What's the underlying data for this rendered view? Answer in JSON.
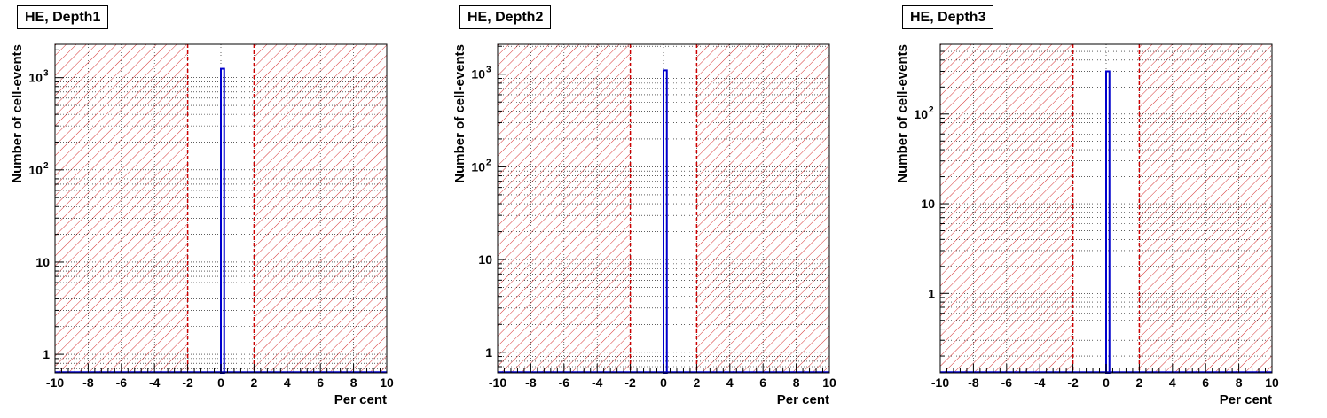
{
  "chart_data": [
    {
      "type": "histogram",
      "title": "HE, Depth1",
      "xlabel": "Per cent",
      "ylabel": "Number of cell-events",
      "xlim": [
        -10,
        10
      ],
      "ylim": [
        0.63,
        2300
      ],
      "yscale": "log",
      "x_ticks": [
        "-10",
        "-8",
        "-6",
        "-4",
        "-2",
        "0",
        "2",
        "4",
        "6",
        "8",
        "10"
      ],
      "y_ticks": [
        {
          "v": 1,
          "label": "1"
        },
        {
          "v": 10,
          "label": "10"
        },
        {
          "v": 100,
          "label": "10",
          "sup": "2"
        },
        {
          "v": 1000,
          "label": "10",
          "sup": "3"
        }
      ],
      "cut_lines": [
        -2,
        2
      ],
      "bins": [
        {
          "x0": 0,
          "x1": 0.2,
          "y": 1250
        }
      ],
      "grid": true,
      "colors": {
        "histogram": "#0000cc",
        "cut_region": "#cc0000"
      }
    },
    {
      "type": "histogram",
      "title": "HE, Depth2",
      "xlabel": "Per cent",
      "ylabel": "Number of cell-events",
      "xlim": [
        -10,
        10
      ],
      "ylim": [
        0.6,
        2100
      ],
      "yscale": "log",
      "x_ticks": [
        "-10",
        "-8",
        "-6",
        "-4",
        "-2",
        "0",
        "2",
        "4",
        "6",
        "8",
        "10"
      ],
      "y_ticks": [
        {
          "v": 1,
          "label": "1"
        },
        {
          "v": 10,
          "label": "10"
        },
        {
          "v": 100,
          "label": "10",
          "sup": "2"
        },
        {
          "v": 1000,
          "label": "10",
          "sup": "3"
        }
      ],
      "cut_lines": [
        -2,
        2
      ],
      "bins": [
        {
          "x0": 0,
          "x1": 0.2,
          "y": 1100
        }
      ],
      "grid": true,
      "colors": {
        "histogram": "#0000cc",
        "cut_region": "#cc0000"
      }
    },
    {
      "type": "histogram",
      "title": "HE, Depth3",
      "xlabel": "Per cent",
      "ylabel": "Number of cell-events",
      "xlim": [
        -10,
        10
      ],
      "ylim": [
        0.13,
        600
      ],
      "yscale": "log",
      "x_ticks": [
        "-10",
        "-8",
        "-6",
        "-4",
        "-2",
        "0",
        "2",
        "4",
        "6",
        "8",
        "10"
      ],
      "y_ticks": [
        {
          "v": 1,
          "label": "1"
        },
        {
          "v": 10,
          "label": "10"
        },
        {
          "v": 100,
          "label": "10",
          "sup": "2"
        }
      ],
      "cut_lines": [
        -2,
        2
      ],
      "bins": [
        {
          "x0": 0,
          "x1": 0.2,
          "y": 300
        }
      ],
      "grid": true,
      "colors": {
        "histogram": "#0000cc",
        "cut_region": "#cc0000"
      }
    }
  ]
}
